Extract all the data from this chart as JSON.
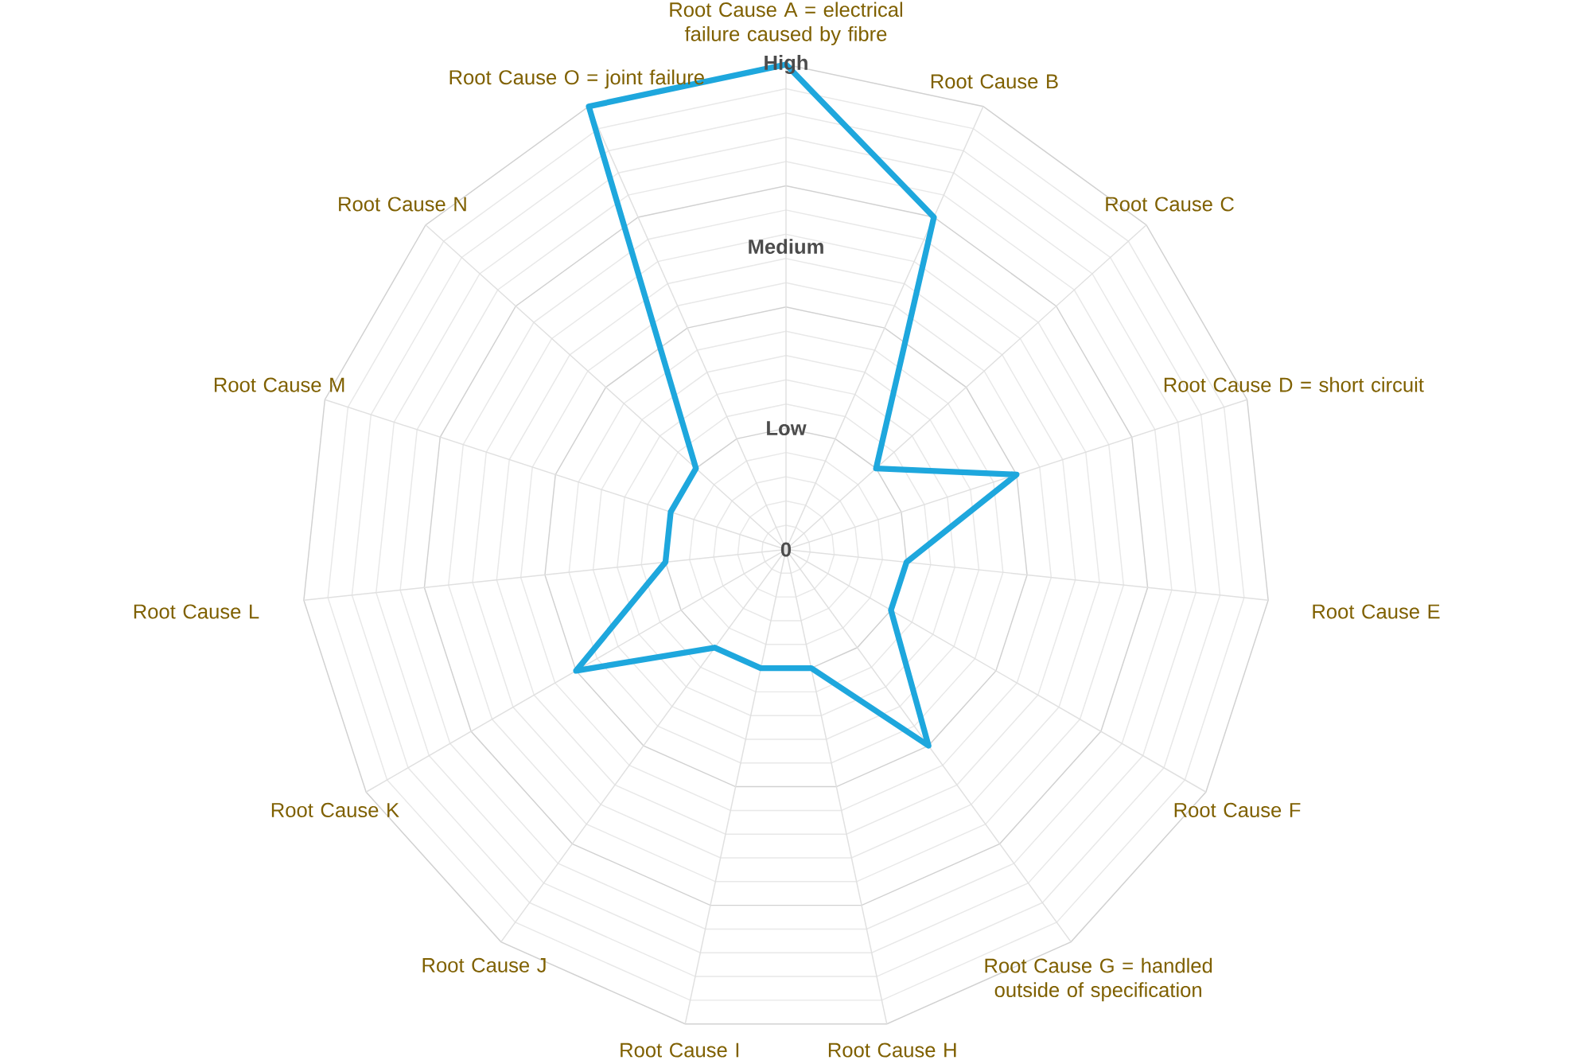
{
  "chart_data": {
    "type": "radar",
    "categories": [
      "Root Cause A = electrical failure caused by fibre",
      "Root Cause B",
      "Root Cause C",
      "Root Cause D = short circuit",
      "Root Cause E",
      "Root Cause F",
      "Root Cause G = handled outside of specification",
      "Root Cause H",
      "Root Cause I",
      "Root Cause J",
      "Root Cause K",
      "Root Cause L",
      "Root Cause M",
      "Root Cause N",
      "Root Cause O = joint failure"
    ],
    "series": [
      {
        "color": "#1ea7dd",
        "values": [
          4,
          3,
          1,
          2,
          1,
          1,
          2,
          1,
          1,
          1,
          2,
          1,
          1,
          1,
          4
        ]
      }
    ],
    "ylim": [
      0,
      4
    ],
    "yticks": [
      0,
      {
        "value": 1,
        "label": "Low"
      },
      {
        "value": 2.5,
        "label": "Medium"
      },
      {
        "value": 4,
        "label": "High"
      }
    ],
    "grid": true
  }
}
